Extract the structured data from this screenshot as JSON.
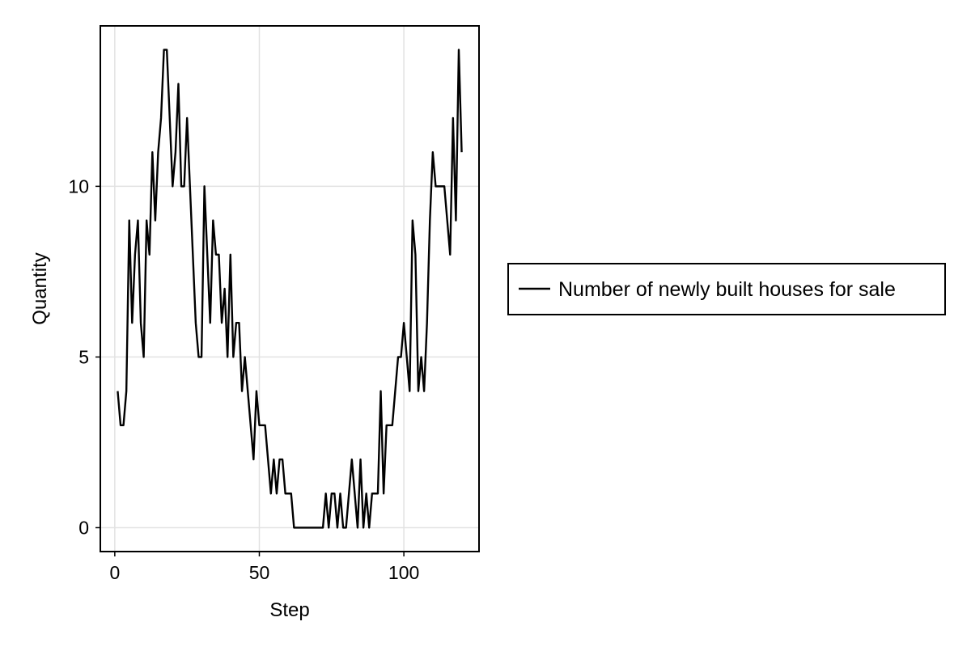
{
  "chart_data": {
    "type": "line",
    "title": "",
    "xlabel": "Step",
    "ylabel": "Quantity",
    "xlim": [
      -5,
      126
    ],
    "ylim": [
      -0.7,
      14.7
    ],
    "x_ticks": [
      0,
      50,
      100
    ],
    "x_tick_labels": [
      "0",
      "50",
      "100"
    ],
    "y_ticks": [
      0,
      5,
      10
    ],
    "y_tick_labels": [
      "0",
      "5",
      "10"
    ],
    "grid": true,
    "legend_placement": "right",
    "series": [
      {
        "name": "Number of newly built houses for sale",
        "color": "#000000",
        "x": [
          1,
          2,
          3,
          4,
          5,
          6,
          7,
          8,
          9,
          10,
          11,
          12,
          13,
          14,
          15,
          16,
          17,
          18,
          19,
          20,
          21,
          22,
          23,
          24,
          25,
          26,
          27,
          28,
          29,
          30,
          31,
          32,
          33,
          34,
          35,
          36,
          37,
          38,
          39,
          40,
          41,
          42,
          43,
          44,
          45,
          46,
          47,
          48,
          49,
          50,
          51,
          52,
          53,
          54,
          55,
          56,
          57,
          58,
          59,
          60,
          61,
          62,
          63,
          64,
          65,
          66,
          67,
          68,
          69,
          70,
          71,
          72,
          73,
          74,
          75,
          76,
          77,
          78,
          79,
          80,
          81,
          82,
          83,
          84,
          85,
          86,
          87,
          88,
          89,
          90,
          91,
          92,
          93,
          94,
          95,
          96,
          97,
          98,
          99,
          100,
          101,
          102,
          103,
          104,
          105,
          106,
          107,
          108,
          109,
          110,
          111,
          112,
          113,
          114,
          115,
          116,
          117,
          118,
          119,
          120
        ],
        "values": [
          4,
          3,
          3,
          4,
          9,
          6,
          8,
          9,
          6,
          5,
          9,
          8,
          11,
          9,
          11,
          12,
          14,
          14,
          12,
          10,
          11,
          13,
          10,
          10,
          12,
          10,
          8,
          6,
          5,
          5,
          10,
          8,
          6,
          9,
          8,
          8,
          6,
          7,
          5,
          8,
          5,
          6,
          6,
          4,
          5,
          4,
          3,
          2,
          4,
          3,
          3,
          3,
          2,
          1,
          2,
          1,
          2,
          2,
          1,
          1,
          1,
          0,
          0,
          0,
          0,
          0,
          0,
          0,
          0,
          0,
          0,
          0,
          1,
          0,
          1,
          1,
          0,
          1,
          0,
          0,
          1,
          2,
          1,
          0,
          2,
          0,
          1,
          0,
          1,
          1,
          1,
          4,
          1,
          3,
          3,
          3,
          4,
          5,
          5,
          6,
          5,
          4,
          9,
          8,
          4,
          5,
          4,
          6,
          9,
          11,
          10,
          10,
          10,
          10,
          9,
          8,
          12,
          9,
          14,
          11
        ]
      }
    ]
  }
}
